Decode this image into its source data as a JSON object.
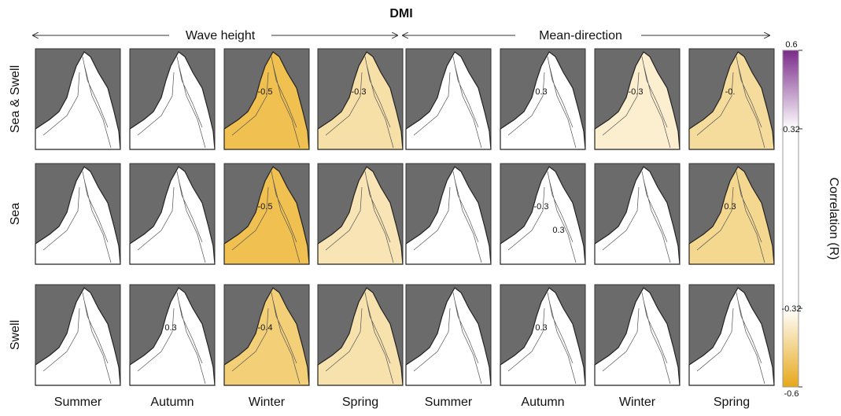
{
  "title": "DMI",
  "groups": [
    "Wave height",
    "Mean-direction"
  ],
  "rows": [
    "Sea & Swell",
    "Sea",
    "Swell"
  ],
  "columns": [
    "Summer",
    "Autumn",
    "Winter",
    "Spring",
    "Summer",
    "Autumn",
    "Winter",
    "Spring"
  ],
  "panels": [
    [
      {
        "shading": "#ffffff"
      },
      {
        "shading": "#ffffff"
      },
      {
        "shading": "#f0c050",
        "labels": [
          "-0.5"
        ]
      },
      {
        "shading": "#f7e0a8",
        "labels": [
          "-0.3"
        ]
      },
      {
        "shading": "#ffffff"
      },
      {
        "shading": "#ffffff",
        "labels": [
          "0.3"
        ]
      },
      {
        "shading": "#fbefd0",
        "labels": [
          "-0.3"
        ]
      },
      {
        "shading": "#f5dc9c",
        "labels": [
          "-0."
        ]
      }
    ],
    [
      {
        "shading": "#ffffff"
      },
      {
        "shading": "#ffffff"
      },
      {
        "shading": "#f0c050",
        "labels": [
          "-0.5"
        ]
      },
      {
        "shading": "#f8e4b4"
      },
      {
        "shading": "#ffffff"
      },
      {
        "shading": "#ffffff",
        "labels": [
          "-0.3",
          "0.3"
        ]
      },
      {
        "shading": "#ffffff"
      },
      {
        "shading": "#f5d890",
        "labels": [
          "0.3"
        ]
      }
    ],
    [
      {
        "shading": "#ffffff"
      },
      {
        "shading": "#ffffff",
        "labels": [
          "0.3"
        ]
      },
      {
        "shading": "#f3cf78",
        "labels": [
          "-0.4"
        ]
      },
      {
        "shading": "#f7e2ae"
      },
      {
        "shading": "#ffffff"
      },
      {
        "shading": "#ffffff",
        "labels": [
          "0.3"
        ]
      },
      {
        "shading": "#ffffff"
      },
      {
        "shading": "#ffffff"
      }
    ]
  ],
  "colorbar": {
    "label": "Correlation (R)",
    "lim": [
      -0.6,
      0.6
    ],
    "ticks": [
      0.6,
      0.32,
      -0.32,
      -0.6
    ],
    "colors": [
      "#7a2a8a",
      "#ffffff",
      "#ffffff",
      "#e6a818"
    ]
  }
}
